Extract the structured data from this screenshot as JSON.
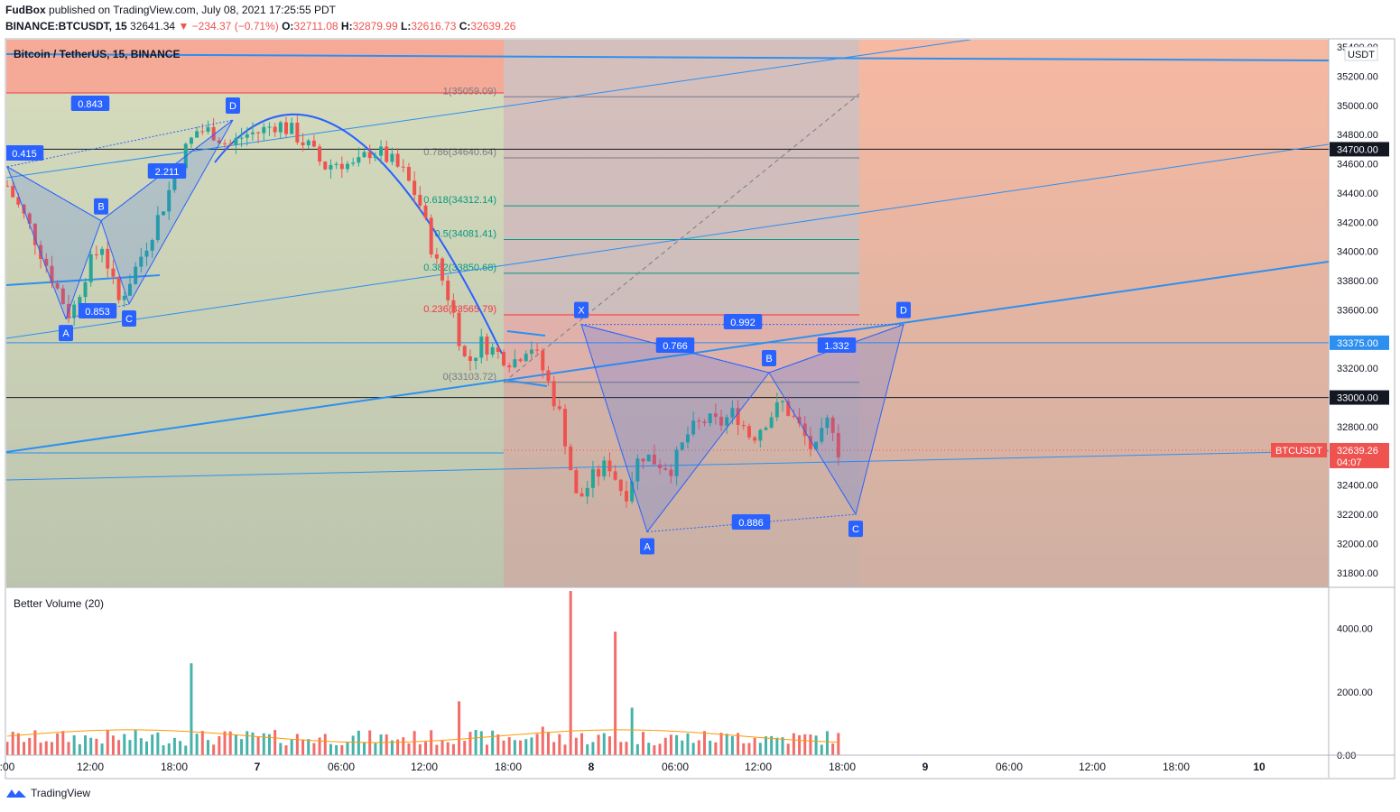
{
  "header": {
    "author": "FudBox",
    "published_text": "published on TradingView.com, July 08, 2021 17:25:55 PDT",
    "symbol_line": "BINANCE:BTCUSDT, 15",
    "last": "32641.34",
    "change": "▼ −234.37 (−0.71%)",
    "o_label": "O:",
    "o": "32711.08",
    "h_label": "H:",
    "h": "32879.99",
    "l_label": "L:",
    "l": "32616.73",
    "c_label": "C:",
    "c": "32639.26"
  },
  "chart_title": "Bitcoin / TetherUS, 15, BINANCE",
  "currency": "USDT",
  "volume_title": "Better Volume (20)",
  "footer_brand": "TradingView",
  "colors": {
    "up": "#26a69a",
    "down": "#ef5350",
    "pattern": "#2962ff",
    "trendline": "#2d8ff0",
    "fib_gray": "#787b86",
    "fib_green": "#089981",
    "fib_red": "#f23645",
    "bg_salmon": "#f5a58a"
  },
  "chart_data": {
    "type": "candlestick",
    "symbol": "BTCUSDT",
    "timeframe_minutes": 15,
    "price_axis": {
      "ylim": [
        31700,
        35450
      ],
      "ticks": [
        "35400.00",
        "35200.00",
        "35000.00",
        "34800.00",
        "34600.00",
        "34400.00",
        "34200.00",
        "34000.00",
        "33800.00",
        "33600.00",
        "33400.00",
        "33200.00",
        "33000.00",
        "32800.00",
        "32600.00",
        "32400.00",
        "32200.00",
        "32000.00",
        "31800.00"
      ],
      "tick_values": [
        35400,
        35200,
        35000,
        34800,
        34600,
        34400,
        34200,
        34000,
        33800,
        33600,
        33400,
        33200,
        33000,
        32800,
        32600,
        32400,
        32200,
        32000,
        31800
      ]
    },
    "time_axis": {
      "labels": [
        ":00",
        "12:00",
        "18:00",
        "7",
        "06:00",
        "12:00",
        "18:00",
        "8",
        "06:00",
        "12:00",
        "18:00",
        "9",
        "06:00",
        "12:00",
        "18:00",
        "10"
      ],
      "bold": [
        false,
        false,
        false,
        true,
        false,
        false,
        false,
        true,
        false,
        false,
        false,
        true,
        false,
        false,
        false,
        true
      ]
    },
    "close_path": [
      [
        0,
        34450
      ],
      [
        3,
        34150
      ],
      [
        6,
        33780
      ],
      [
        8,
        33550
      ],
      [
        10,
        33870
      ],
      [
        12,
        34050
      ],
      [
        14,
        33650
      ],
      [
        16,
        33860
      ],
      [
        18,
        34100
      ],
      [
        20,
        34350
      ],
      [
        22,
        34650
      ],
      [
        24,
        34830
      ],
      [
        26,
        34820
      ],
      [
        28,
        34720
      ],
      [
        30,
        34800
      ],
      [
        32,
        34820
      ],
      [
        34,
        34880
      ],
      [
        36,
        34820
      ],
      [
        38,
        34720
      ],
      [
        40,
        34580
      ],
      [
        42,
        34620
      ],
      [
        44,
        34570
      ],
      [
        46,
        34700
      ],
      [
        48,
        34640
      ],
      [
        50,
        34540
      ],
      [
        52,
        34350
      ],
      [
        54,
        33950
      ],
      [
        56,
        33650
      ],
      [
        58,
        33220
      ],
      [
        60,
        33380
      ],
      [
        62,
        33300
      ],
      [
        64,
        33250
      ],
      [
        66,
        33380
      ],
      [
        68,
        33150
      ],
      [
        70,
        32850
      ],
      [
        72,
        32280
      ],
      [
        74,
        32450
      ],
      [
        76,
        32550
      ],
      [
        78,
        32320
      ],
      [
        80,
        32620
      ],
      [
        82,
        32560
      ],
      [
        84,
        32520
      ],
      [
        86,
        32750
      ],
      [
        88,
        32840
      ],
      [
        90,
        32820
      ],
      [
        92,
        32900
      ],
      [
        94,
        32720
      ],
      [
        96,
        32860
      ],
      [
        98,
        32960
      ],
      [
        100,
        32800
      ],
      [
        102,
        32610
      ],
      [
        104,
        32880
      ],
      [
        105,
        32640
      ]
    ],
    "price_lines": [
      {
        "label": "34700.00",
        "value": 34700
      },
      {
        "label": "33375.00",
        "value": 33375
      },
      {
        "label": "33000.00",
        "value": 33000
      }
    ],
    "last_price": {
      "label": "BTCUSDT",
      "value": 32639.26,
      "value_label": "32639.26",
      "countdown": "04:07"
    },
    "fibonacci": [
      {
        "label": "1(35059.09)",
        "value": 35059.09
      },
      {
        "label": "0.786(34640.64)",
        "value": 34640.64
      },
      {
        "label": "0.618(34312.14)",
        "value": 34312.14
      },
      {
        "label": "0.5(34081.41)",
        "value": 34081.41
      },
      {
        "label": "0.382(33850.68)",
        "value": 33850.68
      },
      {
        "label": "0.236(33565.79)",
        "value": 33565.79
      },
      {
        "label": "0(33103.72)",
        "value": 33103.72
      }
    ],
    "harmonic_pattern_1": {
      "points": {
        "X": 34580,
        "A": 33540,
        "B": 34210,
        "C": 33640,
        "D": 34900
      },
      "ratios": [
        "0.415",
        "0.853",
        "2.211",
        "0.843"
      ]
    },
    "harmonic_pattern_2": {
      "points": {
        "X": 33500,
        "A": 32080,
        "B": 33170,
        "C": 32200,
        "D": 33500
      },
      "ratios": [
        "0.766",
        "0.886",
        "1.332",
        "0.992"
      ]
    },
    "volume": {
      "ylim": [
        0,
        4900
      ],
      "ticks": [
        "4000.00",
        "2000.00",
        "0.00"
      ],
      "tick_values": [
        4000,
        2000,
        0
      ],
      "spikes": [
        {
          "bar": 23,
          "value": 2900
        },
        {
          "bar": 57,
          "value": 1700
        },
        {
          "bar": 68,
          "value": 900
        },
        {
          "bar": 71,
          "value": 5200
        },
        {
          "bar": 77,
          "value": 3900
        },
        {
          "bar": 79,
          "value": 1500
        },
        {
          "bar": 92,
          "value": 700
        }
      ]
    }
  }
}
